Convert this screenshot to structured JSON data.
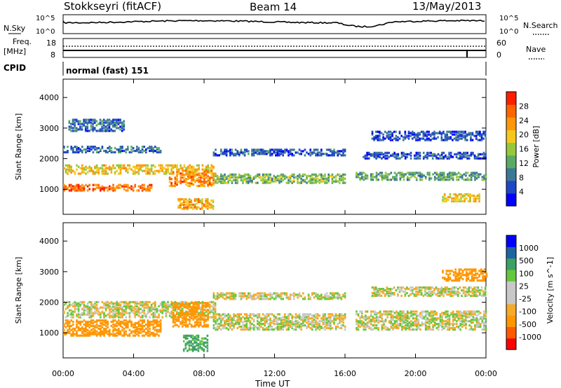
{
  "header": {
    "station": "Stokkseyri (fitACF)",
    "beam": "Beam 14",
    "date": "13/May/2013"
  },
  "sky_panel": {
    "left_label": "N.Sky",
    "right_label": "N.Search",
    "left_ticks": [
      "10^5",
      "10^0"
    ],
    "right_ticks": [
      "10^5",
      "10^0"
    ],
    "note": ""
  },
  "freq_panel": {
    "left_label_line1": "Freq.",
    "left_label_line2": "[MHz]",
    "left_ticks": [
      "18",
      "8"
    ],
    "right_ticks": [
      "60",
      "0"
    ],
    "right_label": "Nave"
  },
  "cpid_panel": {
    "label": "CPID",
    "mode": "normal (fast) 151"
  },
  "xaxis": {
    "label": "Time UT",
    "ticks": [
      "00:00",
      "04:00",
      "08:00",
      "12:00",
      "16:00",
      "20:00",
      "00:00"
    ]
  },
  "colors": {
    "power_scale": [
      "#0000ff",
      "#1e46c8",
      "#3c7896",
      "#5aaa64",
      "#96c83c",
      "#f5c81e",
      "#ff960a",
      "#ff6400",
      "#ff1e00"
    ],
    "velocity_scale": [
      "#ff0000",
      "#ff5a00",
      "#ff9600",
      "#f5aa28",
      "#c8c8c8",
      "#c8c8c8",
      "#64c83c",
      "#3ca064",
      "#1e64a0",
      "#0000ff"
    ],
    "noise": "#000000"
  },
  "chart_data": [
    {
      "type": "heatmap",
      "name_tag": "power",
      "title": "",
      "xlabel": "",
      "ylabel": "Slant Range [km]",
      "ylim": [
        180,
        4600
      ],
      "xlim": [
        0,
        24
      ],
      "yticks": [
        "1000",
        "2000",
        "3000",
        "4000"
      ],
      "colorbar": {
        "label": "Power [dB]",
        "ticks": [
          "4",
          "8",
          "12",
          "16",
          "20",
          "24",
          "28"
        ],
        "range": [
          0,
          32
        ]
      },
      "bands": [
        {
          "t0": 0.0,
          "t1": 8.6,
          "r0": 1500,
          "r1": 1800,
          "level": 20
        },
        {
          "t0": 0.0,
          "t1": 5.0,
          "r0": 950,
          "r1": 1150,
          "level": 26
        },
        {
          "t0": 0.0,
          "t1": 5.5,
          "r0": 2200,
          "r1": 2400,
          "level": 8
        },
        {
          "t0": 0.3,
          "t1": 3.5,
          "r0": 2900,
          "r1": 3300,
          "level": 8
        },
        {
          "t0": 6.0,
          "t1": 8.5,
          "r0": 1100,
          "r1": 1600,
          "level": 24
        },
        {
          "t0": 6.5,
          "t1": 8.5,
          "r0": 350,
          "r1": 700,
          "level": 22
        },
        {
          "t0": 8.5,
          "t1": 16.0,
          "r0": 1200,
          "r1": 1500,
          "level": 14
        },
        {
          "t0": 8.5,
          "t1": 16.0,
          "r0": 2100,
          "r1": 2300,
          "level": 6
        },
        {
          "t0": 16.6,
          "t1": 24.0,
          "r0": 1300,
          "r1": 1550,
          "level": 12
        },
        {
          "t0": 17.0,
          "t1": 24.0,
          "r0": 2000,
          "r1": 2200,
          "level": 6
        },
        {
          "t0": 17.5,
          "t1": 24.0,
          "r0": 2600,
          "r1": 2900,
          "level": 6
        },
        {
          "t0": 21.5,
          "t1": 23.6,
          "r0": 600,
          "r1": 850,
          "level": 20
        }
      ]
    },
    {
      "type": "heatmap",
      "name_tag": "velocity",
      "title": "",
      "xlabel": "Time UT",
      "ylabel": "Slant Range [km]",
      "ylim": [
        180,
        4600
      ],
      "xlim": [
        0,
        24
      ],
      "yticks": [
        "1000",
        "2000",
        "3000",
        "4000"
      ],
      "colorbar": {
        "label": "Velocity",
        "unit": "[m s^-1]",
        "ticks": [
          "1000",
          "500",
          "100",
          "25",
          "-25",
          "-100",
          "-500",
          "-1000"
        ],
        "range": [
          -1000,
          1000
        ]
      },
      "bands": [
        {
          "t0": 0.0,
          "t1": 5.5,
          "r0": 900,
          "r1": 1400,
          "vel": -300
        },
        {
          "t0": 0.0,
          "t1": 8.6,
          "r0": 1500,
          "r1": 2000,
          "vel": 0
        },
        {
          "t0": 6.2,
          "t1": 8.2,
          "r0": 1200,
          "r1": 2000,
          "vel": -400
        },
        {
          "t0": 6.8,
          "t1": 8.2,
          "r0": 400,
          "r1": 900,
          "vel": 150
        },
        {
          "t0": 8.5,
          "t1": 16.0,
          "r0": 1100,
          "r1": 1600,
          "vel": 0
        },
        {
          "t0": 8.5,
          "t1": 16.0,
          "r0": 2100,
          "r1": 2300,
          "vel": 0
        },
        {
          "t0": 16.6,
          "t1": 24.0,
          "r0": 1100,
          "r1": 1700,
          "vel": 0
        },
        {
          "t0": 17.5,
          "t1": 24.0,
          "r0": 2200,
          "r1": 2500,
          "vel": 0
        },
        {
          "t0": 21.5,
          "t1": 24.0,
          "r0": 2700,
          "r1": 3100,
          "vel": -200
        }
      ]
    }
  ]
}
